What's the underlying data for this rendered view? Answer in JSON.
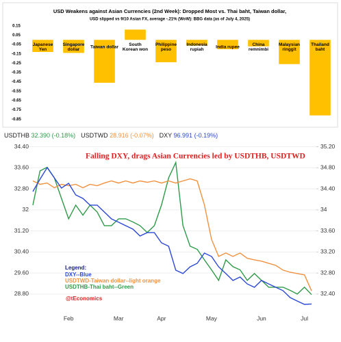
{
  "chart_data": [
    {
      "type": "bar",
      "title": "USD Weakens against Asian Currencies (2nd Week): Dropped Most vs. Thai baht, Taiwan dollar,",
      "subtitle": "USD slipped  vs 9/10 Asian FX, average  -.21% (WoW): BBG data (as of July 4, 2025)",
      "categories": [
        "Japanese Yen",
        "Singapore dollar",
        "Taiwan dollar",
        "South Korean won",
        "Philippine peso",
        "Indonesia rupiah",
        "India rupee",
        "China remnimbi",
        "Malaysian ringgit",
        "Thailand baht"
      ],
      "values": [
        -0.13,
        -0.14,
        -0.46,
        0.11,
        -0.24,
        -0.06,
        -0.1,
        -0.07,
        -0.26,
        -0.81
      ],
      "color": "#ffc000",
      "ylim": [
        -0.9,
        0.2
      ],
      "yticks": [
        0.15,
        0.05,
        -0.05,
        -0.15,
        -0.25,
        -0.35,
        -0.45,
        -0.55,
        -0.65,
        -0.75,
        -0.85
      ]
    },
    {
      "type": "line",
      "annotation": "Falling DXY, drags Asian Currencies led by USDTHB, USDTWD",
      "legend_note": {
        "heading": "Legend:",
        "lines": [
          {
            "text": "DXY--Blue",
            "color": "#2b47d6"
          },
          {
            "text": "USDTWD-Taiwan dollar--light orange",
            "color": "#f0913f"
          },
          {
            "text": "USDTHB-Thai baht--Green",
            "color": "#2e9a48"
          }
        ],
        "credit": "@tEconomics"
      },
      "categories": [
        null,
        null,
        null,
        null,
        null,
        "Feb",
        null,
        null,
        null,
        null,
        null,
        null,
        "Mar",
        null,
        null,
        null,
        null,
        null,
        "Apr",
        null,
        null,
        null,
        null,
        null,
        null,
        "May",
        null,
        null,
        null,
        null,
        null,
        null,
        "Jun",
        null,
        null,
        null,
        null,
        null,
        "Jul",
        null
      ],
      "series": [
        {
          "name": "USDTHB",
          "last": "32.390",
          "change": "(-0.18%)",
          "color": "#2e9a48",
          "axis": "y2",
          "values": [
            34.09,
            34.74,
            34.81,
            34.61,
            34.22,
            33.83,
            34.09,
            33.9,
            34.09,
            33.96,
            33.7,
            33.7,
            33.83,
            33.83,
            33.77,
            33.7,
            33.57,
            33.7,
            34.09,
            34.61,
            34.9,
            33.7,
            33.31,
            33.25,
            33.05,
            32.86,
            32.66,
            33.05,
            32.92,
            32.86,
            32.66,
            32.79,
            32.66,
            32.53,
            32.53,
            32.53,
            32.47,
            32.4,
            32.53,
            32.39
          ]
        },
        {
          "name": "USDTWD",
          "last": "28.916",
          "change": "(-0.07%)",
          "color": "#f0913f",
          "axis": "y",
          "values": [
            33.1,
            32.97,
            33.02,
            32.84,
            32.97,
            32.92,
            32.97,
            32.84,
            32.97,
            32.92,
            33.02,
            33.1,
            33.02,
            33.1,
            33.02,
            33.1,
            33.05,
            33.1,
            33.02,
            33.1,
            33.02,
            33.1,
            33.18,
            33.1,
            32.19,
            30.88,
            30.23,
            30.36,
            30.23,
            30.36,
            30.16,
            30.1,
            30.05,
            29.97,
            29.89,
            29.71,
            29.63,
            29.58,
            29.53,
            28.92
          ]
        },
        {
          "name": "DXY",
          "last": "96.991",
          "change": "(-0.19%)",
          "color": "#2b47d6",
          "axis": "y3",
          "values": [
            108.3,
            109.54,
            110.71,
            109.68,
            108.65,
            109.13,
            107.96,
            107.61,
            106.93,
            106.93,
            106.24,
            105.55,
            105.21,
            104.86,
            104.52,
            103.83,
            104.17,
            104.17,
            103.14,
            102.8,
            100.39,
            100.05,
            100.73,
            101.08,
            102.11,
            101.77,
            100.73,
            100.05,
            99.36,
            99.7,
            99.01,
            98.67,
            99.36,
            99.01,
            98.67,
            98.33,
            97.64,
            97.29,
            96.95,
            96.99
          ]
        }
      ],
      "ylim": [
        28.2,
        34.7
      ],
      "yticks": [
        {
          "value": 34.4,
          "label": "34.40"
        },
        {
          "value": 33.6,
          "label": "33.60"
        },
        {
          "value": 32.8,
          "label": "32.80"
        },
        32,
        {
          "value": 31.2,
          "label": "31.20"
        },
        {
          "value": 30.4,
          "label": "30.40"
        },
        {
          "value": 29.6,
          "label": "29.60"
        },
        {
          "value": 28.8,
          "label": "28.80"
        }
      ],
      "y2lim": [
        32.1,
        35.35
      ],
      "y2ticks": [
        {
          "value": 35.2,
          "label": "35.20"
        },
        {
          "value": 34.8,
          "label": "34.80"
        },
        {
          "value": 34.4,
          "label": "34.40"
        },
        34,
        {
          "value": 33.6,
          "label": "33.60"
        },
        {
          "value": 33.2,
          "label": "33.20"
        },
        {
          "value": 32.8,
          "label": "32.80"
        },
        {
          "value": 32.4,
          "label": "32.40"
        }
      ],
      "y3lim": [
        96.4,
        113.6
      ],
      "grid": true
    }
  ]
}
